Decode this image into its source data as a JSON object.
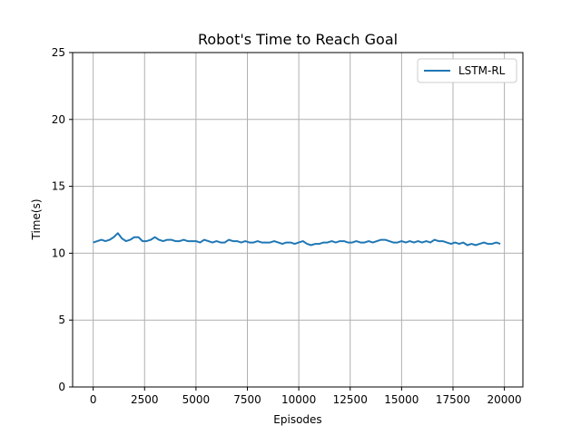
{
  "chart_data": {
    "type": "line",
    "title": "Robot's Time to Reach Goal",
    "xlabel": "Episodes",
    "ylabel": "Time(s)",
    "xlim": [
      -1000,
      20900
    ],
    "ylim": [
      0,
      25
    ],
    "xticks": [
      0,
      2500,
      5000,
      7500,
      10000,
      12500,
      15000,
      17500,
      20000
    ],
    "yticks": [
      0,
      5,
      10,
      15,
      20,
      25
    ],
    "grid": true,
    "legend_position": "top-right",
    "series": [
      {
        "name": "LSTM-RL",
        "color": "#1f77b4",
        "x": [
          0,
          200,
          400,
          600,
          800,
          1000,
          1200,
          1400,
          1600,
          1800,
          2000,
          2200,
          2400,
          2600,
          2800,
          3000,
          3200,
          3400,
          3600,
          3800,
          4000,
          4200,
          4400,
          4600,
          4800,
          5000,
          5200,
          5400,
          5600,
          5800,
          6000,
          6200,
          6400,
          6600,
          6800,
          7000,
          7200,
          7400,
          7600,
          7800,
          8000,
          8200,
          8400,
          8600,
          8800,
          9000,
          9200,
          9400,
          9600,
          9800,
          10000,
          10200,
          10400,
          10600,
          10800,
          11000,
          11200,
          11400,
          11600,
          11800,
          12000,
          12200,
          12400,
          12600,
          12800,
          13000,
          13200,
          13400,
          13600,
          13800,
          14000,
          14200,
          14400,
          14600,
          14800,
          15000,
          15200,
          15400,
          15600,
          15800,
          16000,
          16200,
          16400,
          16600,
          16800,
          17000,
          17200,
          17400,
          17600,
          17800,
          18000,
          18200,
          18400,
          18600,
          18800,
          19000,
          19200,
          19400,
          19600,
          19800
        ],
        "values": [
          10.8,
          10.9,
          11.0,
          10.9,
          11.0,
          11.2,
          11.5,
          11.1,
          10.9,
          11.0,
          11.2,
          11.2,
          10.9,
          10.9,
          11.0,
          11.2,
          11.0,
          10.9,
          11.0,
          11.0,
          10.9,
          10.9,
          11.0,
          10.9,
          10.9,
          10.9,
          10.8,
          11.0,
          10.9,
          10.8,
          10.9,
          10.8,
          10.8,
          11.0,
          10.9,
          10.9,
          10.8,
          10.9,
          10.8,
          10.8,
          10.9,
          10.8,
          10.8,
          10.8,
          10.9,
          10.8,
          10.7,
          10.8,
          10.8,
          10.7,
          10.8,
          10.9,
          10.7,
          10.6,
          10.7,
          10.7,
          10.8,
          10.8,
          10.9,
          10.8,
          10.9,
          10.9,
          10.8,
          10.8,
          10.9,
          10.8,
          10.8,
          10.9,
          10.8,
          10.9,
          11.0,
          11.0,
          10.9,
          10.8,
          10.8,
          10.9,
          10.8,
          10.9,
          10.8,
          10.9,
          10.8,
          10.9,
          10.8,
          11.0,
          10.9,
          10.9,
          10.8,
          10.7,
          10.8,
          10.7,
          10.8,
          10.6,
          10.7,
          10.6,
          10.7,
          10.8,
          10.7,
          10.7,
          10.8,
          10.7
        ]
      }
    ]
  }
}
